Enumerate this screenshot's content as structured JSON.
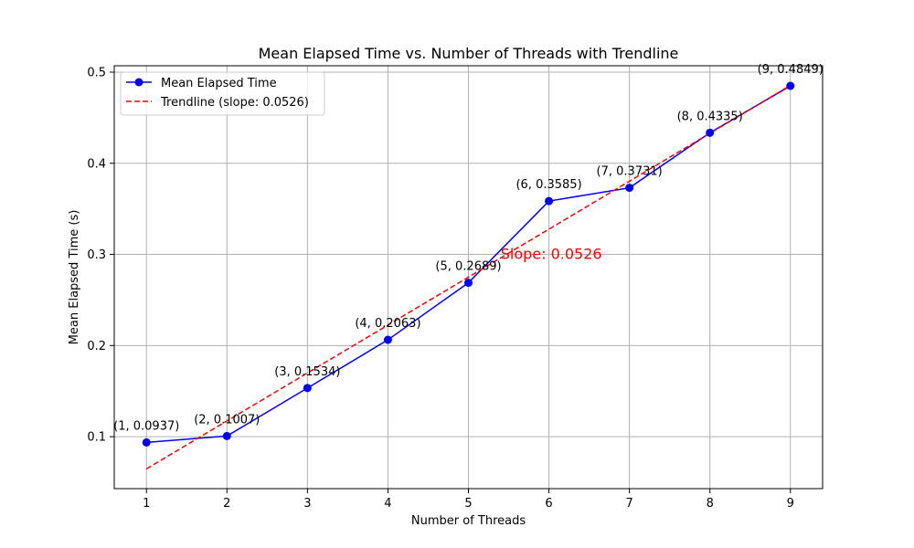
{
  "chart_data": {
    "type": "line",
    "title": "Mean Elapsed Time vs. Number of Threads with Trendline",
    "xlabel": "Number of Threads",
    "ylabel": "Mean Elapsed Time (s)",
    "xlim": [
      0.6,
      9.4
    ],
    "ylim": [
      0.043,
      0.507
    ],
    "x_ticks": [
      1,
      2,
      3,
      4,
      5,
      6,
      7,
      8,
      9
    ],
    "x_tick_labels": [
      "1",
      "2",
      "3",
      "4",
      "5",
      "6",
      "7",
      "8",
      "9"
    ],
    "y_ticks": [
      0.1,
      0.2,
      0.3,
      0.4,
      0.5
    ],
    "y_tick_labels": [
      "0.1",
      "0.2",
      "0.3",
      "0.4",
      "0.5"
    ],
    "grid": true,
    "legend_position": "top-left",
    "series": [
      {
        "name": "Mean Elapsed Time",
        "style": "solid-line-with-circle-markers",
        "color": "#0000ff",
        "x": [
          1,
          2,
          3,
          4,
          5,
          6,
          7,
          8,
          9
        ],
        "values": [
          0.0937,
          0.1007,
          0.1534,
          0.2063,
          0.2689,
          0.3585,
          0.3731,
          0.4335,
          0.4849
        ]
      },
      {
        "name": "Trendline (slope: 0.0526)",
        "style": "dashed-line",
        "color": "#ff0000",
        "x": [
          1,
          9
        ],
        "values": [
          0.0647,
          0.4855
        ]
      }
    ],
    "point_labels": [
      "(1, 0.0937)",
      "(2, 0.1007)",
      "(3, 0.1534)",
      "(4, 0.2063)",
      "(5, 0.2689)",
      "(6, 0.3585)",
      "(7, 0.3731)",
      "(8, 0.4335)",
      "(9, 0.4849)"
    ],
    "annotations": [
      {
        "text": "Slope: 0.0526",
        "x": 5.4,
        "y": 0.3,
        "color": "#ff0000"
      }
    ]
  }
}
